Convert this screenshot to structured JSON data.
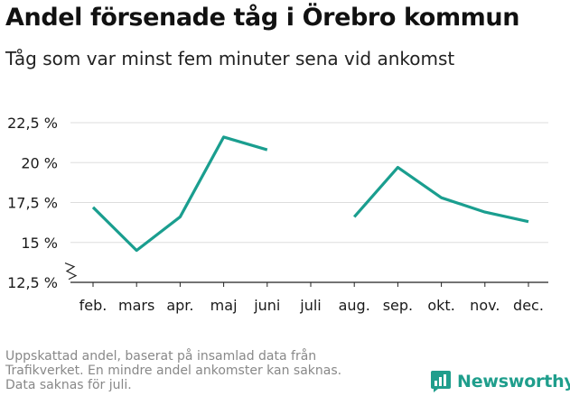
{
  "chart_data": {
    "type": "line",
    "title": "Andel försenade tåg i Örebro kommun",
    "subtitle": "Tåg som var minst fem minuter sena vid ankomst",
    "xlabel": "",
    "ylabel": "",
    "categories": [
      "feb.",
      "mars",
      "apr.",
      "maj",
      "juni",
      "juli",
      "aug.",
      "sep.",
      "okt.",
      "nov.",
      "dec."
    ],
    "series": [
      {
        "values": [
          17.2,
          14.5,
          16.6,
          21.6,
          20.8,
          null,
          16.6,
          19.7,
          17.8,
          16.9,
          16.3
        ],
        "color": "#1a9e8f"
      }
    ],
    "y_ticks": [
      12.5,
      15,
      17.5,
      20,
      22.5
    ],
    "y_tick_labels": [
      "12,5 %",
      "15 %",
      "17,5 %",
      "20 %",
      "22,5 %"
    ],
    "ylim": [
      12.5,
      22.5
    ],
    "y_axis_break": true,
    "grid": true,
    "legend": "none"
  },
  "footnote": [
    "Uppskattad andel, baserat på insamlad data från",
    "Trafikverket. En mindre andel ankomster kan saknas.",
    "Data saknas för juli."
  ],
  "brand": {
    "name": "Newsworthy",
    "icon": "newsworthy-logo-icon",
    "color": "#1f9e8c"
  }
}
